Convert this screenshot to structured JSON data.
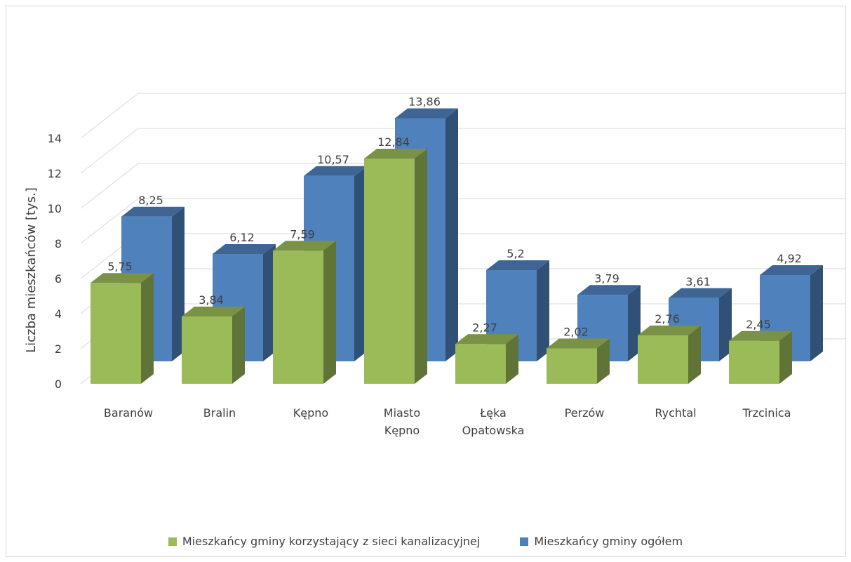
{
  "chart_data": {
    "type": "bar",
    "subtype": "3d-clustered-column",
    "categories": [
      "Baranów",
      "Bralin",
      "Kępno",
      "Miasto Kępno",
      "Łęka Opatowska",
      "Perzów",
      "Rychtal",
      "Trzcinica"
    ],
    "series": [
      {
        "name": "Mieszkańcy gminy korzystający z sieci kanalizacyjnej",
        "values": [
          5.75,
          3.84,
          7.59,
          12.84,
          2.27,
          2.02,
          2.76,
          2.45
        ],
        "labels": [
          "5,75",
          "3,84",
          "7,59",
          "12,84",
          "2,27",
          "2,02",
          "2,76",
          "2,45"
        ],
        "color": "#9bbb59"
      },
      {
        "name": "Mieszkańcy gminy ogółem",
        "values": [
          8.25,
          6.12,
          10.57,
          13.86,
          5.2,
          3.79,
          3.61,
          4.92
        ],
        "labels": [
          "8,25",
          "6,12",
          "10,57",
          "13,86",
          "5,2",
          "3,79",
          "3,61",
          "4,92"
        ],
        "color": "#4f81bd"
      }
    ],
    "ylabel": "Liczba mieszkańców [tys.]",
    "xlabel": "",
    "yticks": [
      "0",
      "2",
      "4",
      "6",
      "8",
      "10",
      "12",
      "14"
    ],
    "ylim": [
      0,
      14
    ],
    "grid": true,
    "legend_position": "bottom"
  }
}
